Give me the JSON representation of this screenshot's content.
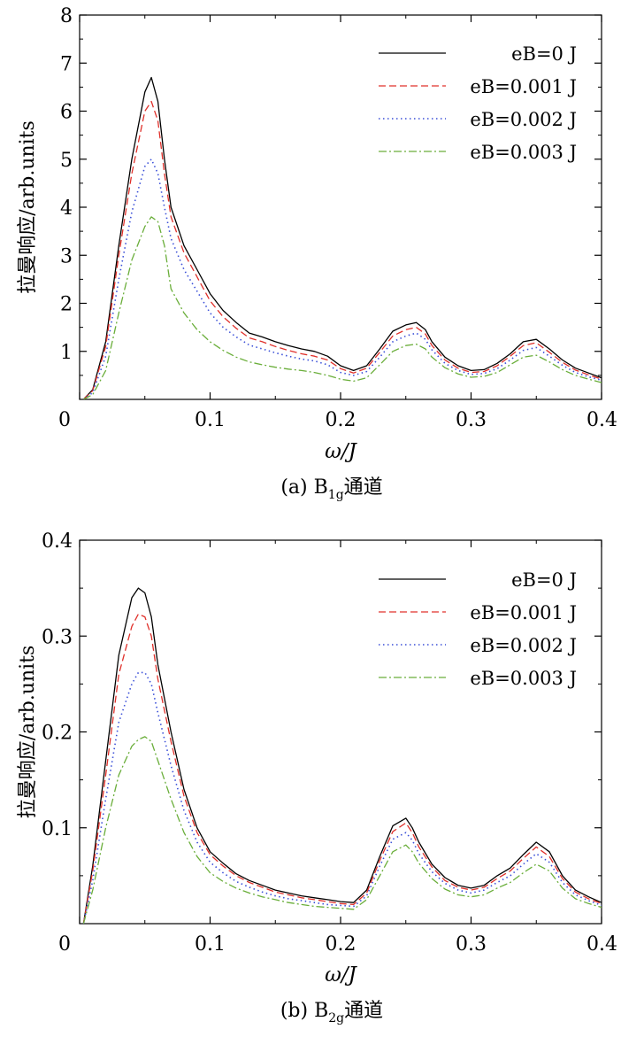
{
  "chart_data": [
    {
      "type": "line",
      "xlabel": "ω/J",
      "ylabel": "拉曼响应/arb.units",
      "caption": {
        "prefix": "(a) B",
        "sub": "1g",
        "suffix": "通道"
      },
      "xlim": [
        0,
        0.4
      ],
      "ylim": [
        0,
        8
      ],
      "xticks": [
        "0",
        "0.1",
        "0.2",
        "0.3",
        "0.4"
      ],
      "xtick_values": [
        0,
        0.1,
        0.2,
        0.3,
        0.4
      ],
      "yticks": [
        "1",
        "2",
        "3",
        "4",
        "5",
        "6",
        "7",
        "8"
      ],
      "ytick_values": [
        1,
        2,
        3,
        4,
        5,
        6,
        7,
        8
      ],
      "legend_position": "top-right",
      "grid": false,
      "series": [
        {
          "name": "eB=0 J",
          "color": "#000000",
          "dash": "solid",
          "x": [
            0.003,
            0.01,
            0.02,
            0.03,
            0.04,
            0.05,
            0.055,
            0.06,
            0.065,
            0.07,
            0.08,
            0.09,
            0.1,
            0.11,
            0.12,
            0.13,
            0.14,
            0.15,
            0.16,
            0.17,
            0.18,
            0.19,
            0.2,
            0.21,
            0.22,
            0.23,
            0.24,
            0.25,
            0.258,
            0.265,
            0.27,
            0.28,
            0.29,
            0.3,
            0.31,
            0.32,
            0.33,
            0.34,
            0.35,
            0.36,
            0.37,
            0.38,
            0.39,
            0.4
          ],
          "y": [
            0.0,
            0.2,
            1.2,
            3.2,
            5.0,
            6.4,
            6.7,
            6.2,
            5.0,
            4.0,
            3.2,
            2.7,
            2.2,
            1.85,
            1.6,
            1.38,
            1.3,
            1.2,
            1.12,
            1.05,
            1.0,
            0.9,
            0.7,
            0.6,
            0.7,
            1.05,
            1.42,
            1.55,
            1.6,
            1.45,
            1.2,
            0.88,
            0.7,
            0.6,
            0.62,
            0.75,
            0.95,
            1.2,
            1.25,
            1.05,
            0.82,
            0.65,
            0.55,
            0.45
          ]
        },
        {
          "name": "eB=0.001 J",
          "color": "#e0302a",
          "dash": "dashed",
          "x": [
            0.003,
            0.01,
            0.02,
            0.03,
            0.04,
            0.05,
            0.055,
            0.06,
            0.065,
            0.07,
            0.08,
            0.09,
            0.1,
            0.11,
            0.12,
            0.13,
            0.14,
            0.15,
            0.16,
            0.17,
            0.18,
            0.19,
            0.2,
            0.21,
            0.22,
            0.23,
            0.24,
            0.25,
            0.258,
            0.265,
            0.27,
            0.28,
            0.29,
            0.3,
            0.31,
            0.32,
            0.33,
            0.34,
            0.35,
            0.36,
            0.37,
            0.38,
            0.39,
            0.4
          ],
          "y": [
            0.0,
            0.18,
            1.1,
            3.0,
            4.7,
            6.0,
            6.2,
            5.8,
            4.7,
            3.8,
            3.05,
            2.55,
            2.05,
            1.72,
            1.48,
            1.28,
            1.2,
            1.1,
            1.02,
            0.95,
            0.9,
            0.82,
            0.64,
            0.55,
            0.65,
            0.98,
            1.32,
            1.45,
            1.5,
            1.36,
            1.12,
            0.82,
            0.65,
            0.56,
            0.58,
            0.7,
            0.9,
            1.12,
            1.18,
            0.98,
            0.77,
            0.61,
            0.51,
            0.42
          ]
        },
        {
          "name": "eB=0.002 J",
          "color": "#3a4fd8",
          "dash": "dotted",
          "x": [
            0.003,
            0.01,
            0.02,
            0.03,
            0.04,
            0.05,
            0.055,
            0.06,
            0.065,
            0.07,
            0.08,
            0.09,
            0.1,
            0.11,
            0.12,
            0.13,
            0.14,
            0.15,
            0.16,
            0.17,
            0.18,
            0.19,
            0.2,
            0.21,
            0.22,
            0.23,
            0.24,
            0.25,
            0.258,
            0.265,
            0.27,
            0.28,
            0.29,
            0.3,
            0.31,
            0.32,
            0.33,
            0.34,
            0.35,
            0.36,
            0.37,
            0.38,
            0.39,
            0.4
          ],
          "y": [
            0.0,
            0.14,
            0.9,
            2.5,
            3.9,
            4.85,
            5.0,
            4.7,
            4.0,
            3.35,
            2.7,
            2.25,
            1.8,
            1.5,
            1.3,
            1.13,
            1.05,
            0.97,
            0.9,
            0.84,
            0.8,
            0.72,
            0.56,
            0.5,
            0.58,
            0.88,
            1.2,
            1.32,
            1.38,
            1.25,
            1.03,
            0.75,
            0.6,
            0.52,
            0.54,
            0.64,
            0.82,
            1.02,
            1.08,
            0.9,
            0.71,
            0.56,
            0.47,
            0.4
          ]
        },
        {
          "name": "eB=0.003 J",
          "color": "#6aae3a",
          "dash": "dashdot",
          "x": [
            0.003,
            0.01,
            0.02,
            0.03,
            0.04,
            0.05,
            0.055,
            0.06,
            0.065,
            0.07,
            0.08,
            0.09,
            0.1,
            0.11,
            0.12,
            0.13,
            0.14,
            0.15,
            0.16,
            0.17,
            0.18,
            0.19,
            0.2,
            0.21,
            0.22,
            0.23,
            0.24,
            0.25,
            0.258,
            0.265,
            0.27,
            0.28,
            0.29,
            0.3,
            0.31,
            0.32,
            0.33,
            0.34,
            0.35,
            0.36,
            0.37,
            0.38,
            0.39,
            0.4
          ],
          "y": [
            0.0,
            0.1,
            0.6,
            1.8,
            2.9,
            3.6,
            3.8,
            3.7,
            3.2,
            2.3,
            1.8,
            1.45,
            1.2,
            1.02,
            0.88,
            0.78,
            0.72,
            0.67,
            0.63,
            0.6,
            0.56,
            0.5,
            0.42,
            0.38,
            0.45,
            0.72,
            1.0,
            1.12,
            1.15,
            1.05,
            0.88,
            0.66,
            0.53,
            0.46,
            0.48,
            0.56,
            0.72,
            0.88,
            0.92,
            0.78,
            0.62,
            0.5,
            0.42,
            0.35
          ]
        }
      ]
    },
    {
      "type": "line",
      "xlabel": "ω/J",
      "ylabel": "拉曼响应/arb.units",
      "caption": {
        "prefix": "(b) B",
        "sub": "2g",
        "suffix": "通道"
      },
      "xlim": [
        0,
        0.4
      ],
      "ylim": [
        0,
        0.4
      ],
      "xticks": [
        "0",
        "0.1",
        "0.2",
        "0.3",
        "0.4"
      ],
      "xtick_values": [
        0,
        0.1,
        0.2,
        0.3,
        0.4
      ],
      "yticks": [
        "0.1",
        "0.2",
        "0.3",
        "0.4"
      ],
      "ytick_values": [
        0.1,
        0.2,
        0.3,
        0.4
      ],
      "legend_position": "top-right",
      "grid": false,
      "series": [
        {
          "name": "eB=0 J",
          "color": "#000000",
          "dash": "solid",
          "x": [
            0.003,
            0.01,
            0.02,
            0.03,
            0.04,
            0.045,
            0.05,
            0.055,
            0.06,
            0.07,
            0.08,
            0.09,
            0.1,
            0.11,
            0.12,
            0.13,
            0.14,
            0.15,
            0.16,
            0.17,
            0.18,
            0.19,
            0.2,
            0.21,
            0.22,
            0.23,
            0.24,
            0.25,
            0.255,
            0.26,
            0.27,
            0.28,
            0.29,
            0.3,
            0.31,
            0.32,
            0.33,
            0.34,
            0.35,
            0.36,
            0.37,
            0.38,
            0.39,
            0.4
          ],
          "y": [
            0.0,
            0.06,
            0.17,
            0.28,
            0.34,
            0.35,
            0.345,
            0.32,
            0.27,
            0.2,
            0.14,
            0.1,
            0.075,
            0.063,
            0.052,
            0.045,
            0.04,
            0.035,
            0.032,
            0.029,
            0.027,
            0.025,
            0.023,
            0.022,
            0.035,
            0.07,
            0.102,
            0.11,
            0.1,
            0.085,
            0.062,
            0.048,
            0.04,
            0.037,
            0.04,
            0.05,
            0.058,
            0.072,
            0.085,
            0.075,
            0.05,
            0.035,
            0.028,
            0.022
          ]
        },
        {
          "name": "eB=0.001 J",
          "color": "#e0302a",
          "dash": "dashed",
          "x": [
            0.003,
            0.01,
            0.02,
            0.03,
            0.04,
            0.045,
            0.05,
            0.055,
            0.06,
            0.07,
            0.08,
            0.09,
            0.1,
            0.11,
            0.12,
            0.13,
            0.14,
            0.15,
            0.16,
            0.17,
            0.18,
            0.19,
            0.2,
            0.21,
            0.22,
            0.23,
            0.24,
            0.25,
            0.255,
            0.26,
            0.27,
            0.28,
            0.29,
            0.3,
            0.31,
            0.32,
            0.33,
            0.34,
            0.35,
            0.36,
            0.37,
            0.38,
            0.39,
            0.4
          ],
          "y": [
            0.0,
            0.055,
            0.155,
            0.26,
            0.31,
            0.323,
            0.32,
            0.3,
            0.255,
            0.19,
            0.133,
            0.095,
            0.072,
            0.06,
            0.05,
            0.043,
            0.038,
            0.033,
            0.03,
            0.027,
            0.025,
            0.023,
            0.021,
            0.02,
            0.032,
            0.066,
            0.096,
            0.105,
            0.095,
            0.08,
            0.059,
            0.045,
            0.038,
            0.035,
            0.038,
            0.047,
            0.055,
            0.068,
            0.08,
            0.07,
            0.047,
            0.033,
            0.026,
            0.021
          ]
        },
        {
          "name": "eB=0.002 J",
          "color": "#3a4fd8",
          "dash": "dotted",
          "x": [
            0.003,
            0.01,
            0.02,
            0.03,
            0.04,
            0.045,
            0.05,
            0.055,
            0.06,
            0.07,
            0.08,
            0.09,
            0.1,
            0.11,
            0.12,
            0.13,
            0.14,
            0.15,
            0.16,
            0.17,
            0.18,
            0.19,
            0.2,
            0.21,
            0.22,
            0.23,
            0.24,
            0.25,
            0.255,
            0.26,
            0.27,
            0.28,
            0.29,
            0.3,
            0.31,
            0.32,
            0.33,
            0.34,
            0.35,
            0.36,
            0.37,
            0.38,
            0.39,
            0.4
          ],
          "y": [
            0.0,
            0.045,
            0.13,
            0.21,
            0.25,
            0.262,
            0.262,
            0.25,
            0.22,
            0.165,
            0.118,
            0.085,
            0.064,
            0.053,
            0.044,
            0.038,
            0.033,
            0.029,
            0.026,
            0.024,
            0.022,
            0.02,
            0.019,
            0.018,
            0.029,
            0.06,
            0.088,
            0.095,
            0.087,
            0.073,
            0.054,
            0.042,
            0.035,
            0.032,
            0.035,
            0.043,
            0.05,
            0.062,
            0.073,
            0.064,
            0.043,
            0.03,
            0.024,
            0.019
          ]
        },
        {
          "name": "eB=0.003 J",
          "color": "#6aae3a",
          "dash": "dashdot",
          "x": [
            0.003,
            0.01,
            0.02,
            0.03,
            0.04,
            0.045,
            0.05,
            0.055,
            0.06,
            0.07,
            0.08,
            0.09,
            0.1,
            0.11,
            0.12,
            0.13,
            0.14,
            0.15,
            0.16,
            0.17,
            0.18,
            0.19,
            0.2,
            0.21,
            0.22,
            0.23,
            0.24,
            0.25,
            0.255,
            0.26,
            0.27,
            0.28,
            0.29,
            0.3,
            0.31,
            0.32,
            0.33,
            0.34,
            0.35,
            0.36,
            0.37,
            0.38,
            0.39,
            0.4
          ],
          "y": [
            0.0,
            0.035,
            0.1,
            0.155,
            0.185,
            0.192,
            0.195,
            0.19,
            0.17,
            0.13,
            0.095,
            0.07,
            0.053,
            0.044,
            0.037,
            0.032,
            0.028,
            0.025,
            0.022,
            0.02,
            0.018,
            0.017,
            0.016,
            0.015,
            0.025,
            0.05,
            0.075,
            0.082,
            0.075,
            0.063,
            0.047,
            0.036,
            0.03,
            0.028,
            0.03,
            0.037,
            0.043,
            0.053,
            0.062,
            0.055,
            0.037,
            0.026,
            0.021,
            0.017
          ]
        }
      ]
    }
  ]
}
